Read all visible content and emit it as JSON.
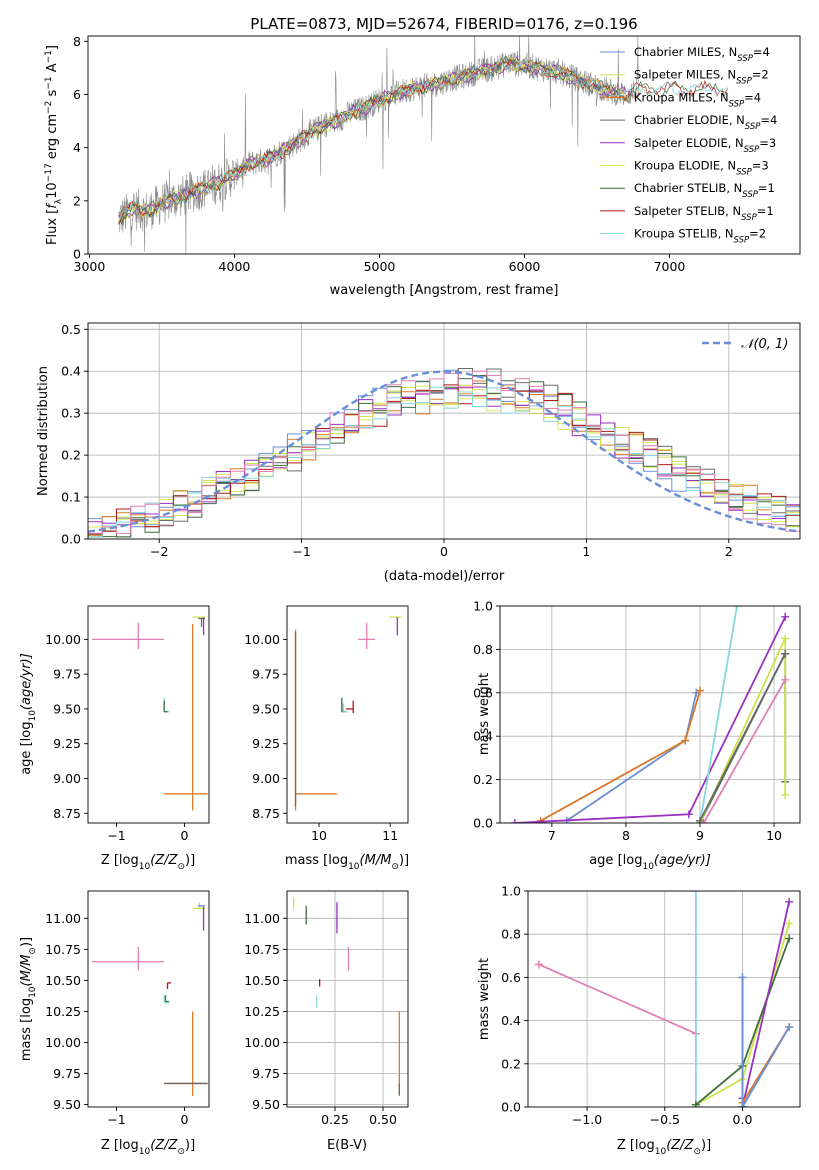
{
  "palette": {
    "Chabrier MILES": "#6a8fd6",
    "Salpeter MILES": "#cfe34a",
    "Kroupa MILES": "#d97a2b",
    "Chabrier ELODIE": "#6b6b6b",
    "Salpeter ELODIE": "#9b2fc0",
    "Kroupa ELODIE": "#dce85a",
    "Chabrier STELIB": "#3f6e3f",
    "Salpeter STELIB": "#b01818",
    "Kroupa STELIB": "#86d8dc",
    "extra_pink": "#e27fb5",
    "grid": "#b0b0b0",
    "normal": "#6a8fd6"
  },
  "chart_data": [
    {
      "id": "spectrum",
      "type": "line",
      "title": "PLATE=0873, MJD=52674, FIBERID=0176, z=0.196",
      "xlabel": "wavelength [Angstrom, rest frame]",
      "ylabel_parts": [
        "Flux [",
        "f",
        "λ",
        "10",
        "−17",
        " erg cm",
        "−2",
        " s",
        "−1",
        " A",
        "−1",
        "]"
      ],
      "xlim": [
        2990,
        7900
      ],
      "ylim": [
        0,
        8.2
      ],
      "xticks": [
        3000,
        4000,
        5000,
        6000,
        7000
      ],
      "yticks": [
        0,
        2,
        4,
        6,
        8
      ],
      "grid": false,
      "legend_position": "right",
      "legend": [
        {
          "name": "Chabrier MILES",
          "nssp": "4"
        },
        {
          "name": "Salpeter MILES",
          "nssp": "2"
        },
        {
          "name": "Kroupa MILES",
          "nssp": "4"
        },
        {
          "name": "Chabrier ELODIE",
          "nssp": "4"
        },
        {
          "name": "Salpeter ELODIE",
          "nssp": "3"
        },
        {
          "name": "Kroupa ELODIE",
          "nssp": "3"
        },
        {
          "name": "Chabrier STELIB",
          "nssp": "1"
        },
        {
          "name": "Salpeter STELIB",
          "nssp": "1"
        },
        {
          "name": "Kroupa STELIB",
          "nssp": "2"
        }
      ],
      "continuum": {
        "x": [
          3200,
          3300,
          3400,
          3500,
          3600,
          3700,
          3800,
          3900,
          4000,
          4100,
          4200,
          4300,
          4400,
          4500,
          4600,
          4700,
          4800,
          4900,
          5000,
          5100,
          5200,
          5300,
          5400,
          5500,
          5600,
          5700,
          5800,
          5900,
          6000,
          6100,
          6200,
          6300,
          6400,
          6500,
          6600,
          6700,
          6800
        ],
        "y": [
          1.3,
          1.7,
          1.6,
          1.9,
          2.1,
          2.3,
          2.5,
          2.7,
          3.0,
          3.4,
          3.5,
          3.8,
          4.1,
          4.5,
          4.8,
          5.0,
          5.3,
          5.5,
          5.8,
          6.0,
          6.2,
          6.3,
          6.4,
          6.6,
          6.7,
          6.9,
          7.0,
          7.2,
          7.1,
          7.0,
          6.9,
          6.7,
          6.5,
          6.3,
          6.1,
          6.0,
          6.2
        ]
      }
    },
    {
      "id": "residuals",
      "type": "step",
      "xlabel": "(data-model)/error",
      "ylabel": "Normed distribution",
      "xlim": [
        -2.5,
        2.5
      ],
      "ylim": [
        0,
        0.515
      ],
      "xticks": [
        -2,
        -1,
        0,
        1,
        2
      ],
      "yticks": [
        0.0,
        0.1,
        0.2,
        0.3,
        0.4,
        0.5
      ],
      "grid": true,
      "legend_position": "top-right",
      "legend": [
        "𝒩(0, 1)"
      ],
      "normal_curve": {
        "mean": 0,
        "sigma": 1
      }
    },
    {
      "id": "age_vs_Z",
      "type": "errorbar",
      "xlabel_parts": [
        "Z [log",
        "10",
        "(Z/Z",
        "⊙",
        ")]"
      ],
      "ylabel_parts": [
        "age  [log",
        "10",
        "(age/yr)]"
      ],
      "xlim": [
        -1.42,
        0.36
      ],
      "ylim": [
        8.68,
        10.24
      ],
      "xticks": [
        -1,
        0
      ],
      "yticks": [
        8.75,
        9.0,
        9.25,
        9.5,
        9.75,
        10.0
      ],
      "grid": false
    },
    {
      "id": "age_vs_mass",
      "type": "errorbar",
      "xlabel_parts": [
        "mass [log",
        "10",
        "(M/M",
        "⊙",
        ")]"
      ],
      "xlim": [
        9.55,
        11.25
      ],
      "ylim": [
        8.68,
        10.24
      ],
      "xticks": [
        10,
        11
      ],
      "yticks": [
        8.75,
        9.0,
        9.25,
        9.5,
        9.75,
        10.0
      ],
      "grid": false
    },
    {
      "id": "weight_vs_age",
      "type": "line",
      "xlabel_parts": [
        "age  [log",
        "10",
        "(age/yr)]"
      ],
      "ylabel": "mass weight",
      "xlim": [
        6.3,
        10.35
      ],
      "ylim": [
        0,
        1.0
      ],
      "xticks": [
        7,
        8,
        9,
        10
      ],
      "yticks": [
        0.0,
        0.2,
        0.4,
        0.6,
        0.8,
        1.0
      ],
      "grid": true,
      "series": [
        {
          "key": "Chabrier MILES",
          "x": [
            7.2,
            8.8,
            8.95
          ],
          "y": [
            0.01,
            0.38,
            0.6
          ]
        },
        {
          "key": "Kroupa MILES",
          "x": [
            6.85,
            8.8,
            9.0
          ],
          "y": [
            0.01,
            0.38,
            0.61
          ]
        },
        {
          "key": "Salpeter ELODIE",
          "x": [
            6.5,
            8.85,
            10.15
          ],
          "y": [
            0.0,
            0.04,
            0.95
          ]
        },
        {
          "key": "Kroupa STELIB",
          "x": [
            9.0,
            9.5
          ],
          "y": [
            0.0,
            1.0
          ]
        },
        {
          "key": "Chabrier STELIB",
          "x": [
            9.0,
            10.15,
            10.15
          ],
          "y": [
            0.0,
            0.78,
            0.19
          ]
        },
        {
          "key": "Salpeter MILES",
          "x": [
            9.0,
            10.15,
            10.15
          ],
          "y": [
            0.0,
            0.85,
            0.13
          ]
        },
        {
          "key": "extra_pink",
          "x": [
            9.05,
            10.15
          ],
          "y": [
            0.0,
            0.66
          ]
        },
        {
          "key": "Chabrier ELODIE",
          "x": [
            9.0,
            10.15
          ],
          "y": [
            0.01,
            0.78
          ]
        }
      ]
    },
    {
      "id": "mass_vs_Z",
      "type": "errorbar",
      "xlabel_parts": [
        "Z [log",
        "10",
        "(Z/Z",
        "⊙",
        ")]"
      ],
      "ylabel_parts": [
        "mass [log",
        "10",
        "(M/M",
        "⊙",
        ")]"
      ],
      "xlim": [
        -1.42,
        0.36
      ],
      "ylim": [
        9.48,
        11.22
      ],
      "xticks": [
        -1,
        0
      ],
      "yticks": [
        9.5,
        9.75,
        10.0,
        10.25,
        10.5,
        10.75,
        11.0
      ],
      "grid": false
    },
    {
      "id": "mass_vs_ebv",
      "type": "errorbar",
      "xlabel": "E(B-V)",
      "xlim": [
        0.0,
        0.63
      ],
      "ylim": [
        9.48,
        11.22
      ],
      "xticks": [
        0.25,
        0.5
      ],
      "yticks": [
        9.5,
        9.75,
        10.0,
        10.25,
        10.5,
        10.75,
        11.0
      ],
      "grid": true
    },
    {
      "id": "weight_vs_Z",
      "type": "line",
      "xlabel_parts": [
        "Z [log",
        "10",
        "(Z/Z",
        "⊙",
        ")]"
      ],
      "ylabel": "mass weight",
      "xlim": [
        -1.38,
        0.37
      ],
      "ylim": [
        0,
        1.0
      ],
      "xticks": [
        -1.0,
        -0.5,
        0.0
      ],
      "yticks": [
        0.0,
        0.2,
        0.4,
        0.6,
        0.8,
        1.0
      ],
      "grid": true,
      "series": [
        {
          "key": "extra_pink",
          "x": [
            -1.31,
            -0.3
          ],
          "y": [
            0.66,
            0.34
          ]
        },
        {
          "key": "Kroupa STELIB",
          "x": [
            -0.3,
            -0.3
          ],
          "y": [
            0.0,
            1.0
          ]
        },
        {
          "key": "Salpeter MILES",
          "x": [
            -0.3,
            0.0,
            0.3
          ],
          "y": [
            0.01,
            0.13,
            0.85
          ]
        },
        {
          "key": "Chabrier STELIB",
          "x": [
            -0.3,
            0.0,
            0.3
          ],
          "y": [
            0.01,
            0.19,
            0.78
          ]
        },
        {
          "key": "Salpeter ELODIE",
          "x": [
            0.0,
            0.0,
            0.3
          ],
          "y": [
            0.04,
            0.0,
            0.95
          ]
        },
        {
          "key": "Kroupa MILES",
          "x": [
            0.0,
            0.0,
            0.0,
            0.3
          ],
          "y": [
            0.6,
            0.0,
            0.02,
            0.37
          ]
        },
        {
          "key": "Chabrier MILES",
          "x": [
            0.0,
            0.0,
            0.3
          ],
          "y": [
            0.6,
            0.0,
            0.37
          ]
        }
      ]
    }
  ]
}
